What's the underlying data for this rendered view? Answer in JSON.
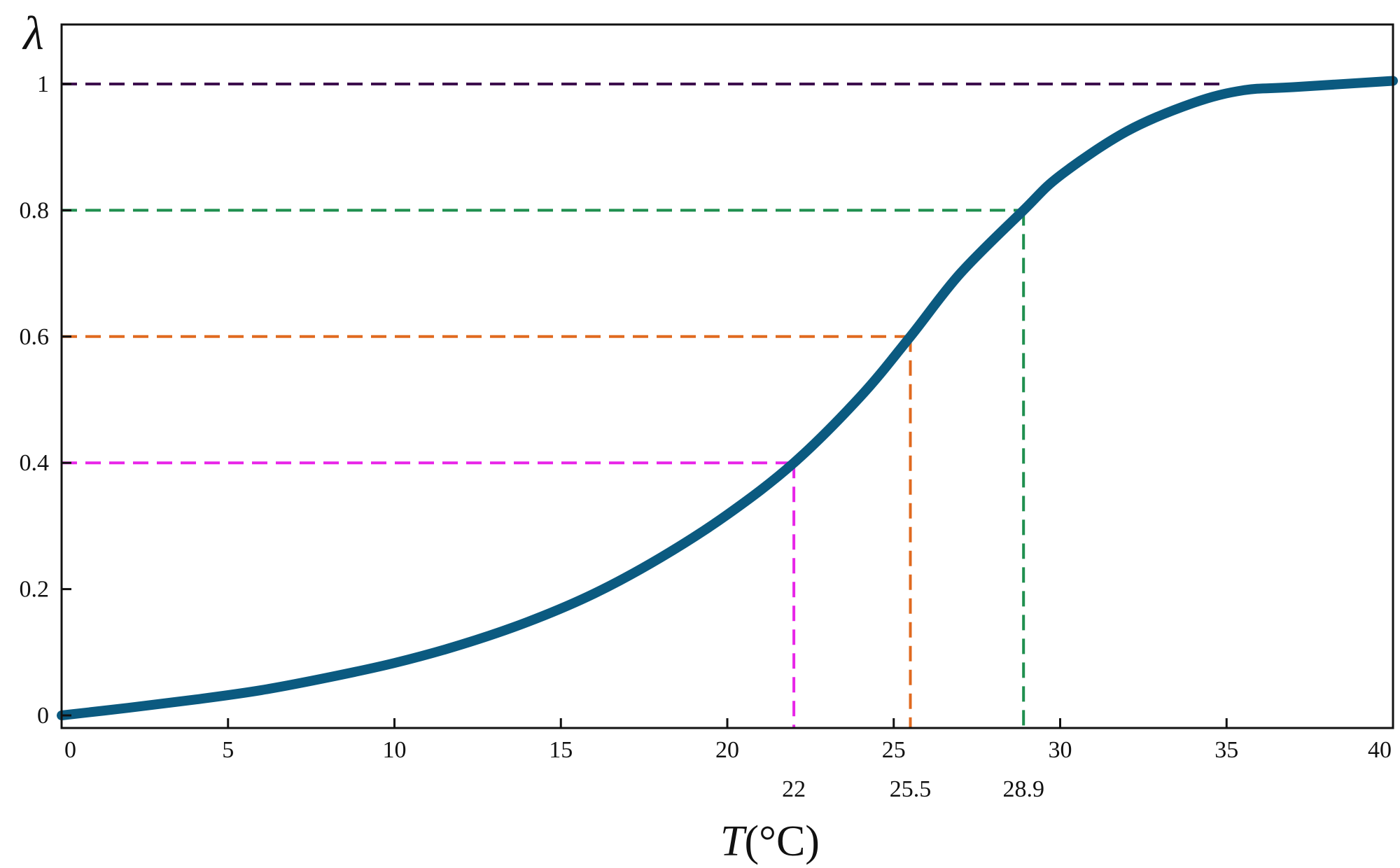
{
  "chart_data": {
    "type": "line",
    "xlabel_symbol": "T",
    "xlabel_unit": "(°C)",
    "ylabel": "λ",
    "xlim": [
      0,
      40
    ],
    "ylim": [
      0,
      1.0
    ],
    "grid": false,
    "x_ticks": [
      {
        "value": 0,
        "label": "0"
      },
      {
        "value": 5,
        "label": "5"
      },
      {
        "value": 10,
        "label": "10"
      },
      {
        "value": 15,
        "label": "15"
      },
      {
        "value": 20,
        "label": "20"
      },
      {
        "value": 25,
        "label": "25"
      },
      {
        "value": 30,
        "label": "30"
      },
      {
        "value": 35,
        "label": "35"
      },
      {
        "value": 40,
        "label": "40"
      }
    ],
    "y_ticks": [
      {
        "value": 0,
        "label": "0"
      },
      {
        "value": 0.2,
        "label": "0.2"
      },
      {
        "value": 0.4,
        "label": "0.4"
      },
      {
        "value": 0.6,
        "label": "0.6"
      },
      {
        "value": 0.8,
        "label": "0.8"
      },
      {
        "value": 1.0,
        "label": "1"
      }
    ],
    "series": [
      {
        "color": "#0b5a80",
        "x": [
          0,
          2,
          4,
          6,
          8,
          10,
          12,
          14,
          16,
          18,
          20,
          22,
          24,
          25.5,
          27,
          28.9,
          30,
          32,
          34,
          35.5,
          37,
          40
        ],
        "y": [
          0.0,
          0.012,
          0.025,
          0.04,
          0.06,
          0.083,
          0.112,
          0.148,
          0.193,
          0.25,
          0.318,
          0.4,
          0.505,
          0.6,
          0.7,
          0.8,
          0.855,
          0.925,
          0.97,
          0.99,
          0.995,
          1.005
        ]
      }
    ],
    "reference_lines": [
      {
        "y": 1.0,
        "x_end": 35.0,
        "color": "#3d0f4d"
      },
      {
        "y": 0.8,
        "x_end": 28.9,
        "color": "#1f8f4f"
      },
      {
        "y": 0.6,
        "x_end": 25.5,
        "color": "#e06a1f"
      },
      {
        "y": 0.4,
        "x_end": 22.0,
        "color": "#e825e8"
      }
    ],
    "annotations": [
      {
        "x": 22.0,
        "label": "22",
        "color": "#e825e8"
      },
      {
        "x": 25.5,
        "label": "25.5",
        "color": "#e06a1f"
      },
      {
        "x": 28.9,
        "label": "28.9",
        "color": "#1f8f4f"
      }
    ]
  }
}
